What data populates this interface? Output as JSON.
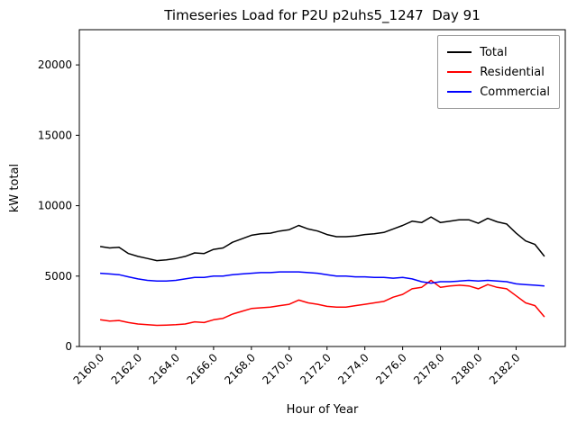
{
  "title": "Timeseries Load for P2U p2uhs5_1247  Day 91",
  "chart_data": {
    "type": "line",
    "title": "Timeseries Load for P2U p2uhs5_1247  Day 91",
    "xlabel": "Hour of Year",
    "ylabel": "kW total",
    "xlim": [
      2158.9,
      2184.6
    ],
    "ylim": [
      0,
      22500
    ],
    "grid": false,
    "legend_position": "upper right",
    "x_ticks": [
      2160,
      2162,
      2164,
      2166,
      2168,
      2170,
      2172,
      2174,
      2176,
      2178,
      2180,
      2182
    ],
    "x_tick_labels": [
      "2160.0",
      "2162.0",
      "2164.0",
      "2166.0",
      "2168.0",
      "2170.0",
      "2172.0",
      "2174.0",
      "2176.0",
      "2178.0",
      "2180.0",
      "2182.0"
    ],
    "y_ticks": [
      0,
      5000,
      10000,
      15000,
      20000
    ],
    "y_tick_labels": [
      "0",
      "5000",
      "10000",
      "15000",
      "20000"
    ],
    "x": [
      2160.0,
      2160.5,
      2161.0,
      2161.5,
      2162.0,
      2162.5,
      2163.0,
      2163.5,
      2164.0,
      2164.5,
      2165.0,
      2165.5,
      2166.0,
      2166.5,
      2167.0,
      2167.5,
      2168.0,
      2168.5,
      2169.0,
      2169.5,
      2170.0,
      2170.5,
      2171.0,
      2171.5,
      2172.0,
      2172.5,
      2173.0,
      2173.5,
      2174.0,
      2174.5,
      2175.0,
      2175.5,
      2176.0,
      2176.5,
      2177.0,
      2177.5,
      2178.0,
      2178.5,
      2179.0,
      2179.5,
      2180.0,
      2180.5,
      2181.0,
      2181.5,
      2182.0,
      2182.5,
      2183.0,
      2183.5
    ],
    "series": [
      {
        "name": "Total",
        "color": "#000000",
        "values": [
          7100,
          7000,
          7050,
          6600,
          6400,
          6250,
          6100,
          6150,
          6250,
          6400,
          6650,
          6600,
          6900,
          7000,
          7400,
          7650,
          7900,
          8000,
          8050,
          8200,
          8300,
          8600,
          8350,
          8200,
          7950,
          7800,
          7800,
          7850,
          7950,
          8000,
          8100,
          8350,
          8600,
          8900,
          8800,
          9200,
          8800,
          8900,
          9000,
          9000,
          8750,
          9100,
          8850,
          8700,
          8050,
          7500,
          7250,
          6400
        ]
      },
      {
        "name": "Residential",
        "color": "#ff0000",
        "values": [
          1900,
          1800,
          1850,
          1700,
          1600,
          1550,
          1500,
          1520,
          1550,
          1600,
          1750,
          1700,
          1900,
          2000,
          2300,
          2500,
          2700,
          2750,
          2800,
          2900,
          3000,
          3300,
          3100,
          3000,
          2850,
          2800,
          2800,
          2900,
          3000,
          3100,
          3200,
          3500,
          3700,
          4100,
          4200,
          4700,
          4200,
          4300,
          4350,
          4300,
          4100,
          4400,
          4200,
          4100,
          3600,
          3100,
          2900,
          2100
        ]
      },
      {
        "name": "Commercial",
        "color": "#0000ff",
        "values": [
          5200,
          5150,
          5100,
          4950,
          4800,
          4700,
          4650,
          4650,
          4700,
          4800,
          4900,
          4900,
          5000,
          5000,
          5100,
          5150,
          5200,
          5250,
          5250,
          5300,
          5300,
          5300,
          5250,
          5200,
          5100,
          5000,
          5000,
          4950,
          4950,
          4900,
          4900,
          4850,
          4900,
          4800,
          4600,
          4500,
          4600,
          4600,
          4650,
          4700,
          4650,
          4700,
          4650,
          4600,
          4450,
          4400,
          4350,
          4300
        ]
      }
    ]
  }
}
